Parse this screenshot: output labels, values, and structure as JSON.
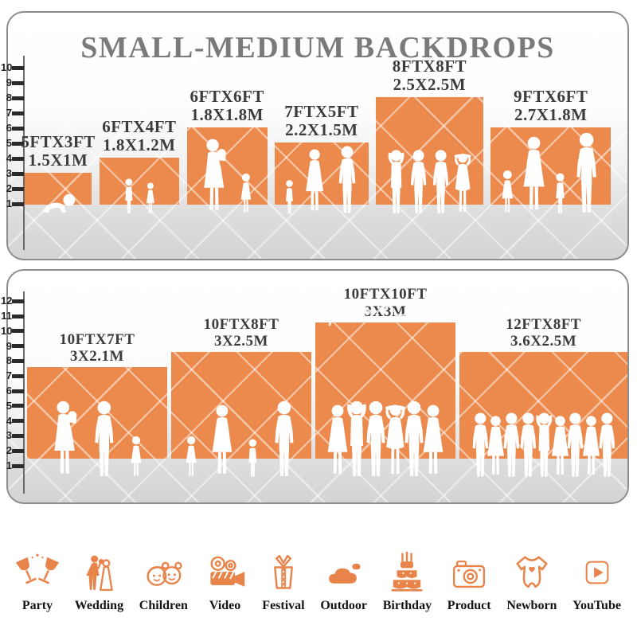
{
  "header": {
    "title": "SMALL-MEDIUM BACKDROPS"
  },
  "colors": {
    "bar_orange": "#EC8A4D",
    "icon_orange": "#E8834A",
    "title_gray": "#7A7A7A",
    "label_dark": "#3C3C3C",
    "panel_border": "#8D8D8D"
  },
  "chart_data": [
    {
      "type": "bar",
      "title": "SMALL-MEDIUM BACKDROPS",
      "ylabel": "height (feet ruler)",
      "ylim": [
        0,
        10
      ],
      "y_ticks": [
        1,
        2,
        3,
        4,
        5,
        6,
        7,
        8,
        9,
        10
      ],
      "grid": false,
      "bars": [
        {
          "label_ft": "5FTX3FT",
          "label_m": "1.5X1M",
          "width_ft": 5,
          "height_ft": 3,
          "figures": [
            "baby-crawl"
          ]
        },
        {
          "label_ft": "6FTX4FT",
          "label_m": "1.8X1.2M",
          "width_ft": 6,
          "height_ft": 4,
          "figures": [
            "boy",
            "girl"
          ]
        },
        {
          "label_ft": "6FTX6FT",
          "label_m": "1.8X1.8M",
          "width_ft": 6,
          "height_ft": 6,
          "figures": [
            "woman-baby",
            "girl"
          ]
        },
        {
          "label_ft": "7FTX5FT",
          "label_m": "2.2X1.5M",
          "width_ft": 7,
          "height_ft": 5,
          "figures": [
            "child",
            "woman",
            "man"
          ]
        },
        {
          "label_ft": "8FTX8FT",
          "label_m": "2.5X2.5M",
          "width_ft": 8,
          "height_ft": 8,
          "figures": [
            "man-arms-up",
            "man",
            "man",
            "woman-hat"
          ]
        },
        {
          "label_ft": "9FTX6FT",
          "label_m": "2.7X1.8M",
          "width_ft": 9,
          "height_ft": 6,
          "figures": [
            "girl",
            "woman",
            "child",
            "man"
          ]
        }
      ]
    },
    {
      "type": "bar",
      "title": "",
      "ylabel": "height (feet ruler)",
      "ylim": [
        0,
        12
      ],
      "y_ticks": [
        1,
        2,
        3,
        4,
        5,
        6,
        7,
        8,
        9,
        10,
        11,
        12
      ],
      "grid": false,
      "bars": [
        {
          "label_ft": "10FTX7FT",
          "label_m": "3X2.1M",
          "width_ft": 10,
          "height_ft": 7,
          "figures": [
            "woman-baby",
            "man",
            "girl"
          ]
        },
        {
          "label_ft": "10FTX8FT",
          "label_m": "3X2.5M",
          "width_ft": 10,
          "height_ft": 8,
          "figures": [
            "girl",
            "woman",
            "child",
            "man"
          ]
        },
        {
          "label_ft": "10FTX10FT",
          "label_m": "3X3M",
          "width_ft": 10,
          "height_ft": 10,
          "watermark_script": true,
          "figures": [
            "woman",
            "man-arms-up",
            "man",
            "woman-hat",
            "man",
            "woman"
          ]
        },
        {
          "label_ft": "12FTX8FT",
          "label_m": "3.6X2.5M",
          "width_ft": 12,
          "height_ft": 8,
          "figures": [
            "man",
            "woman",
            "man",
            "man",
            "man-arms-up",
            "woman",
            "man",
            "woman",
            "man"
          ]
        }
      ]
    }
  ],
  "footer": {
    "categories": [
      {
        "label": "Party",
        "icon": "party-icon"
      },
      {
        "label": "Wedding",
        "icon": "wedding-icon"
      },
      {
        "label": "Children",
        "icon": "children-icon"
      },
      {
        "label": "Video",
        "icon": "video-icon"
      },
      {
        "label": "Festival",
        "icon": "festival-icon"
      },
      {
        "label": "Outdoor",
        "icon": "outdoor-icon"
      },
      {
        "label": "Birthday",
        "icon": "birthday-icon"
      },
      {
        "label": "Product",
        "icon": "product-icon"
      },
      {
        "label": "Newborn",
        "icon": "newborn-icon"
      },
      {
        "label": "YouTube",
        "icon": "youtube-icon"
      }
    ]
  }
}
